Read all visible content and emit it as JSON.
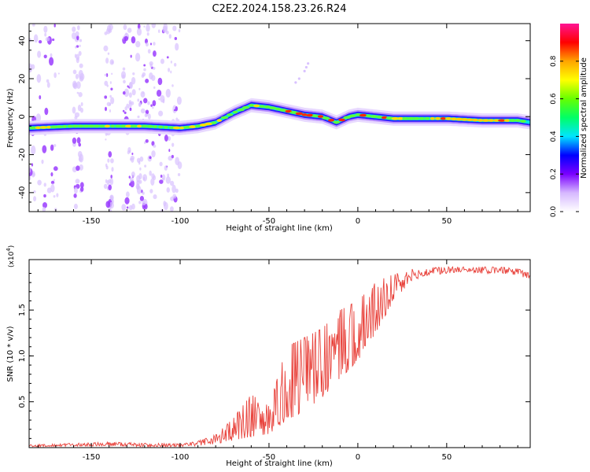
{
  "title": "C2E2.2024.158.23.26.R24",
  "chart_data": [
    {
      "type": "heatmap",
      "title": "",
      "xlabel": "Height of straight line (km)",
      "ylabel": "Frequency (Hz)",
      "xlim": [
        -185,
        97
      ],
      "ylim": [
        -50,
        49
      ],
      "xticks": [
        -150,
        -100,
        -50,
        0,
        50
      ],
      "yticks": [
        -40,
        -20,
        0,
        20,
        40
      ],
      "xtick_labels": [
        "-150",
        "-100",
        "-50",
        "0",
        "50"
      ],
      "ytick_labels": [
        "-40",
        "-20",
        "0",
        "20",
        "40"
      ],
      "ridge": {
        "x": [
          -185,
          -160,
          -140,
          -120,
          -100,
          -90,
          -80,
          -70,
          -60,
          -50,
          -40,
          -30,
          -20,
          -12,
          -5,
          0,
          10,
          20,
          30,
          50,
          70,
          90,
          97
        ],
        "y": [
          -6,
          -5,
          -5,
          -5,
          -6,
          -5,
          -3,
          2,
          6,
          5,
          3,
          1,
          0,
          -3,
          0,
          1,
          0,
          -1,
          -1,
          -1,
          -2,
          -2,
          -3
        ]
      },
      "noise_band_x": [
        -185,
        -95
      ],
      "colorbar": {
        "label": "Normalized spectral amplitude",
        "range": [
          0,
          1
        ],
        "ticks": [
          0.0,
          0.2,
          0.4,
          0.6,
          0.8
        ],
        "tick_labels": [
          "0.0",
          "0.2",
          "0.4",
          "0.6",
          "0.8"
        ],
        "colors": [
          "#ffffff",
          "#d6b8ff",
          "#7a00ff",
          "#0000ff",
          "#00e5ff",
          "#00ff66",
          "#66ff00",
          "#ffff00",
          "#ffa500",
          "#ff0000",
          "#ff1493"
        ]
      }
    },
    {
      "type": "line",
      "title": "",
      "xlabel": "Height of straight line (km)",
      "ylabel": "SNR (10 * v/v)",
      "scale_label": "(x10",
      "scale_exp": "4",
      "scale_close": ")",
      "xlim": [
        -185,
        97
      ],
      "ylim": [
        0,
        2.05
      ],
      "xticks": [
        -150,
        -100,
        -50,
        0,
        50
      ],
      "yticks": [
        0.5,
        1.0,
        1.5
      ],
      "xtick_labels": [
        "-150",
        "-100",
        "-50",
        "0",
        "50"
      ],
      "ytick_labels": [
        "0.5",
        "1.0",
        "1.5"
      ],
      "series": [
        {
          "name": "SNR",
          "color": "#e8413a",
          "envelope_x": [
            -185,
            -140,
            -120,
            -100,
            -90,
            -80,
            -70,
            -60,
            -50,
            -40,
            -30,
            -20,
            -10,
            0,
            10,
            20,
            30,
            40,
            50,
            60,
            70,
            80,
            90,
            97
          ],
          "envelope_low": [
            0.01,
            0.02,
            0.01,
            0.01,
            0.02,
            0.04,
            0.08,
            0.12,
            0.15,
            0.3,
            0.4,
            0.55,
            0.75,
            0.95,
            1.25,
            1.6,
            1.82,
            1.88,
            1.9,
            1.92,
            1.9,
            1.9,
            1.88,
            1.82
          ],
          "envelope_high": [
            0.03,
            0.06,
            0.05,
            0.04,
            0.07,
            0.14,
            0.32,
            0.58,
            0.45,
            1.1,
            1.2,
            1.3,
            1.5,
            1.6,
            1.8,
            1.9,
            1.95,
            1.96,
            1.97,
            1.97,
            1.97,
            1.97,
            1.95,
            1.9
          ]
        }
      ]
    }
  ]
}
